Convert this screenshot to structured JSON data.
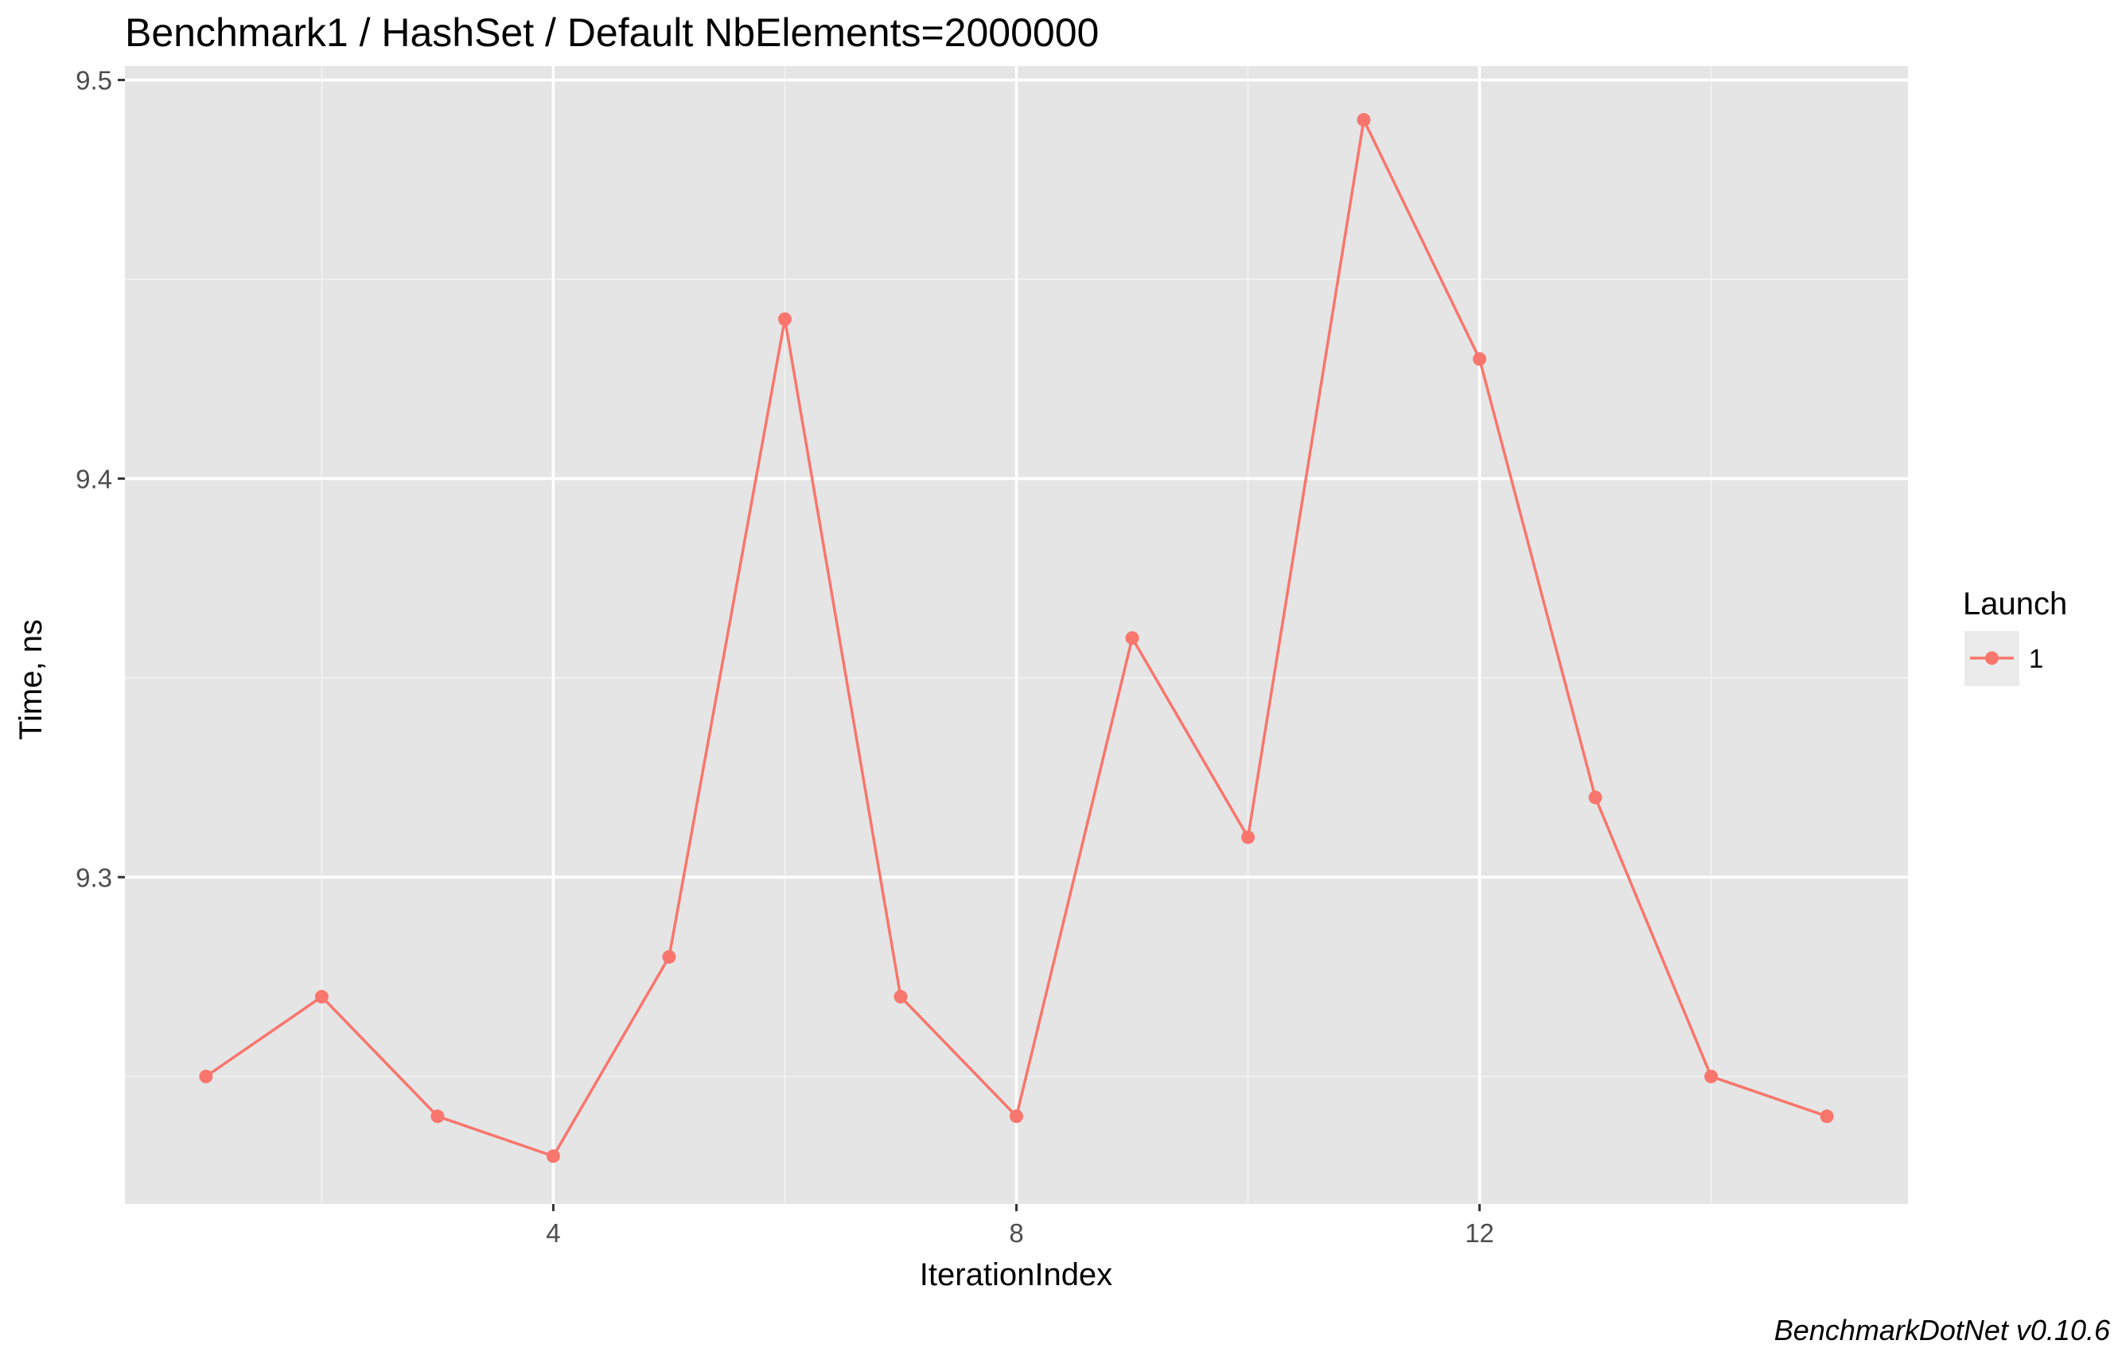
{
  "chart_data": {
    "type": "line",
    "title": "Benchmark1 / HashSet / Default NbElements=2000000",
    "xlabel": "IterationIndex",
    "ylabel": "Time, ns",
    "caption": "BenchmarkDotNet v0.10.6",
    "xlim": [
      0.3,
      15.7
    ],
    "ylim": [
      9.218,
      9.5035
    ],
    "x_ticks": [
      4,
      8,
      12
    ],
    "x_tick_labels": [
      "4",
      "8",
      "12"
    ],
    "x_minor_ticks": [
      2,
      6,
      10,
      14
    ],
    "y_ticks": [
      9.3,
      9.4,
      9.5
    ],
    "y_tick_labels": [
      "9.3",
      "9.4",
      "9.5"
    ],
    "y_minor_ticks": [
      9.25,
      9.35,
      9.45
    ],
    "grid": true,
    "legend": {
      "title": "Launch",
      "placement": "right"
    },
    "series": [
      {
        "name": "1",
        "color": "#F8766D",
        "x": [
          1,
          2,
          3,
          4,
          5,
          6,
          7,
          8,
          9,
          10,
          11,
          12,
          13,
          14,
          15
        ],
        "values": [
          9.25,
          9.27,
          9.24,
          9.23,
          9.28,
          9.44,
          9.27,
          9.24,
          9.36,
          9.31,
          9.49,
          9.43,
          9.32,
          9.25,
          9.24
        ]
      }
    ]
  },
  "colors": {
    "panel_background": "#E5E5E5",
    "grid_major": "#FFFFFF",
    "grid_minor": "#F2F2F2",
    "legend_key_background": "#EBEBEB"
  }
}
